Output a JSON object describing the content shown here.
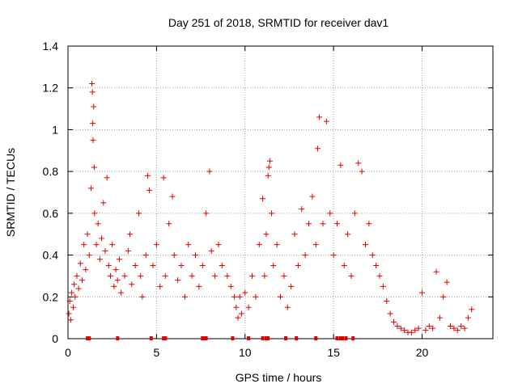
{
  "chart_data": {
    "type": "scatter",
    "title": "Day 251 of 2018, SRMTID for receiver dav1",
    "xlabel": "GPS time / hours",
    "ylabel": "SRMTID / TECUs",
    "xlim": [
      0,
      24
    ],
    "ylim": [
      0,
      1.4
    ],
    "x_ticks": [
      0,
      5,
      10,
      15,
      20
    ],
    "y_ticks": [
      0,
      0.2,
      0.4,
      0.6,
      0.8,
      1,
      1.2,
      1.4
    ],
    "x_tick_labels": [
      "0",
      "5",
      "10",
      "15",
      "20"
    ],
    "y_tick_labels": [
      "0",
      "0.2",
      "0.4",
      "0.6",
      "0.8",
      "1",
      "1.2",
      "1.4"
    ],
    "grid": true,
    "marker": "+",
    "color": "#e00000",
    "series": [
      {
        "name": "SRMTID",
        "points": [
          [
            0.05,
            0.12
          ],
          [
            0.1,
            0.18
          ],
          [
            0.15,
            0.09
          ],
          [
            0.2,
            0.22
          ],
          [
            0.3,
            0.15
          ],
          [
            0.35,
            0.26
          ],
          [
            0.4,
            0.2
          ],
          [
            0.5,
            0.3
          ],
          [
            0.6,
            0.24
          ],
          [
            0.7,
            0.36
          ],
          [
            0.8,
            0.28
          ],
          [
            0.9,
            0.45
          ],
          [
            1.0,
            0.33
          ],
          [
            1.1,
            0.5
          ],
          [
            1.2,
            0.4
          ],
          [
            1.3,
            0.72
          ],
          [
            1.35,
            1.22
          ],
          [
            1.38,
            1.18
          ],
          [
            1.4,
            1.03
          ],
          [
            1.42,
            0.95
          ],
          [
            1.45,
            1.11
          ],
          [
            1.48,
            0.82
          ],
          [
            1.5,
            0.6
          ],
          [
            1.6,
            0.45
          ],
          [
            1.7,
            0.55
          ],
          [
            1.8,
            0.38
          ],
          [
            1.9,
            0.48
          ],
          [
            2.0,
            0.65
          ],
          [
            2.1,
            0.42
          ],
          [
            2.2,
            0.77
          ],
          [
            2.3,
            0.35
          ],
          [
            2.4,
            0.3
          ],
          [
            2.5,
            0.45
          ],
          [
            2.6,
            0.25
          ],
          [
            2.7,
            0.33
          ],
          [
            2.8,
            0.28
          ],
          [
            2.9,
            0.38
          ],
          [
            3.0,
            0.22
          ],
          [
            3.2,
            0.3
          ],
          [
            3.4,
            0.42
          ],
          [
            3.5,
            0.5
          ],
          [
            3.6,
            0.26
          ],
          [
            3.8,
            0.35
          ],
          [
            4.0,
            0.6
          ],
          [
            4.1,
            0.3
          ],
          [
            4.2,
            0.2
          ],
          [
            4.4,
            0.4
          ],
          [
            4.5,
            0.78
          ],
          [
            4.6,
            0.71
          ],
          [
            4.8,
            0.35
          ],
          [
            5.0,
            0.45
          ],
          [
            5.2,
            0.25
          ],
          [
            5.4,
            0.77
          ],
          [
            5.5,
            0.3
          ],
          [
            5.7,
            0.55
          ],
          [
            5.9,
            0.68
          ],
          [
            6.0,
            0.4
          ],
          [
            6.2,
            0.28
          ],
          [
            6.4,
            0.35
          ],
          [
            6.6,
            0.2
          ],
          [
            6.8,
            0.45
          ],
          [
            7.0,
            0.3
          ],
          [
            7.2,
            0.4
          ],
          [
            7.4,
            0.25
          ],
          [
            7.6,
            0.35
          ],
          [
            7.8,
            0.6
          ],
          [
            8.0,
            0.8
          ],
          [
            8.1,
            0.42
          ],
          [
            8.3,
            0.3
          ],
          [
            8.5,
            0.45
          ],
          [
            8.7,
            0.35
          ],
          [
            9.0,
            0.3
          ],
          [
            9.2,
            0.25
          ],
          [
            9.4,
            0.2
          ],
          [
            9.5,
            0.15
          ],
          [
            9.6,
            0.1
          ],
          [
            9.7,
            0.2
          ],
          [
            9.8,
            0.12
          ],
          [
            10.0,
            0.22
          ],
          [
            10.2,
            0.15
          ],
          [
            10.4,
            0.3
          ],
          [
            10.6,
            0.2
          ],
          [
            10.8,
            0.45
          ],
          [
            11.0,
            0.67
          ],
          [
            11.1,
            0.3
          ],
          [
            11.2,
            0.5
          ],
          [
            11.3,
            0.78
          ],
          [
            11.35,
            0.82
          ],
          [
            11.4,
            0.85
          ],
          [
            11.5,
            0.6
          ],
          [
            11.6,
            0.35
          ],
          [
            11.8,
            0.45
          ],
          [
            12.0,
            0.2
          ],
          [
            12.2,
            0.3
          ],
          [
            12.4,
            0.15
          ],
          [
            12.6,
            0.25
          ],
          [
            12.8,
            0.5
          ],
          [
            13.0,
            0.35
          ],
          [
            13.2,
            0.62
          ],
          [
            13.4,
            0.4
          ],
          [
            13.6,
            0.55
          ],
          [
            13.8,
            0.68
          ],
          [
            14.0,
            0.45
          ],
          [
            14.1,
            0.91
          ],
          [
            14.2,
            1.06
          ],
          [
            14.4,
            0.55
          ],
          [
            14.6,
            1.04
          ],
          [
            14.8,
            0.6
          ],
          [
            15.0,
            0.4
          ],
          [
            15.2,
            0.55
          ],
          [
            15.4,
            0.83
          ],
          [
            15.6,
            0.35
          ],
          [
            15.8,
            0.5
          ],
          [
            16.0,
            0.3
          ],
          [
            16.2,
            0.6
          ],
          [
            16.4,
            0.84
          ],
          [
            16.6,
            0.8
          ],
          [
            16.8,
            0.45
          ],
          [
            17.0,
            0.55
          ],
          [
            17.2,
            0.4
          ],
          [
            17.4,
            0.35
          ],
          [
            17.6,
            0.3
          ],
          [
            17.8,
            0.25
          ],
          [
            18.0,
            0.18
          ],
          [
            18.2,
            0.12
          ],
          [
            18.4,
            0.08
          ],
          [
            18.6,
            0.06
          ],
          [
            18.8,
            0.05
          ],
          [
            19.0,
            0.04
          ],
          [
            19.2,
            0.03
          ],
          [
            19.4,
            0.03
          ],
          [
            19.6,
            0.04
          ],
          [
            19.8,
            0.05
          ],
          [
            20.0,
            0.22
          ],
          [
            20.2,
            0.04
          ],
          [
            20.4,
            0.06
          ],
          [
            20.6,
            0.05
          ],
          [
            20.8,
            0.32
          ],
          [
            21.0,
            0.1
          ],
          [
            21.2,
            0.2
          ],
          [
            21.4,
            0.27
          ],
          [
            21.6,
            0.06
          ],
          [
            21.8,
            0.05
          ],
          [
            22.0,
            0.04
          ],
          [
            22.2,
            0.06
          ],
          [
            22.4,
            0.05
          ],
          [
            22.6,
            0.1
          ],
          [
            22.8,
            0.14
          ]
        ]
      }
    ],
    "zero_line_markers": [
      1.1,
      1.2,
      2.8,
      4.7,
      5.4,
      5.5,
      7.6,
      7.7,
      7.8,
      9.3,
      10.2,
      11.0,
      11.2,
      11.3,
      12.3,
      12.9,
      14.0,
      15.2,
      15.4,
      15.5,
      15.7,
      16.1
    ]
  }
}
